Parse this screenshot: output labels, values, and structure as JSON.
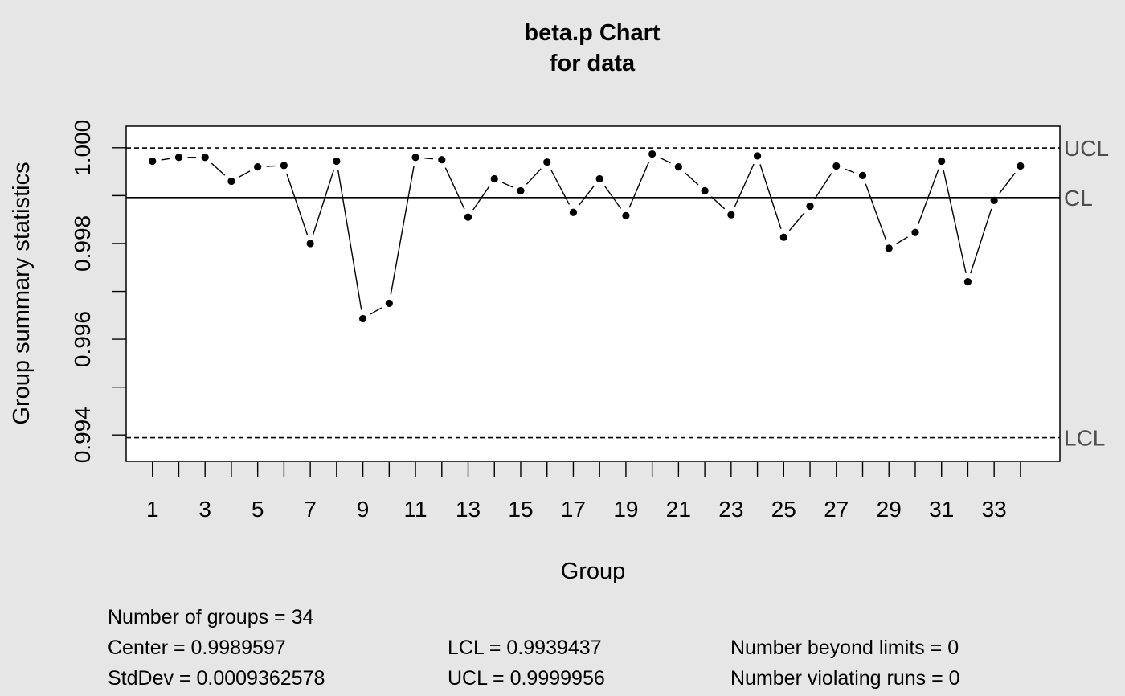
{
  "chart_data": {
    "type": "line",
    "title": "beta.p Chart",
    "subtitle": "for data",
    "xlabel": "Group",
    "ylabel": "Group summary statistics",
    "x": [
      1,
      2,
      3,
      4,
      5,
      6,
      7,
      8,
      9,
      10,
      11,
      12,
      13,
      14,
      15,
      16,
      17,
      18,
      19,
      20,
      21,
      22,
      23,
      24,
      25,
      26,
      27,
      28,
      29,
      30,
      31,
      32,
      33,
      34
    ],
    "values": [
      0.99972,
      0.9998,
      0.9998,
      0.9993,
      0.9996,
      0.99963,
      0.998,
      0.99972,
      0.99643,
      0.99675,
      0.9998,
      0.99975,
      0.99855,
      0.99935,
      0.9991,
      0.9997,
      0.99865,
      0.99935,
      0.99858,
      0.99987,
      0.9996,
      0.9991,
      0.9986,
      0.99983,
      0.99813,
      0.99878,
      0.99962,
      0.99942,
      0.9979,
      0.99823,
      0.99972,
      0.9972,
      0.9989,
      0.99962
    ],
    "x_ticks": [
      "1",
      "3",
      "5",
      "7",
      "9",
      "11",
      "13",
      "15",
      "17",
      "19",
      "21",
      "23",
      "25",
      "27",
      "29",
      "31",
      "33"
    ],
    "y_ticks": [
      "0.994",
      "0.996",
      "0.998",
      "1.000"
    ],
    "ylim": [
      0.99345,
      1.00045
    ],
    "xlim": [
      0,
      35.5
    ],
    "limits": {
      "ucl": {
        "label": "UCL",
        "value": 0.9999956
      },
      "cl": {
        "label": "CL",
        "value": 0.9989597
      },
      "lcl": {
        "label": "LCL",
        "value": 0.9939437
      }
    },
    "grid": false
  },
  "stats": {
    "groups": "Number of groups = 34",
    "center": "Center = 0.9989597",
    "stddev": "StdDev = 0.0009362578",
    "lcl": "LCL = 0.9939437",
    "ucl": "UCL = 0.9999956",
    "beyond": "Number beyond limits = 0",
    "violating": "Number violating runs = 0"
  }
}
